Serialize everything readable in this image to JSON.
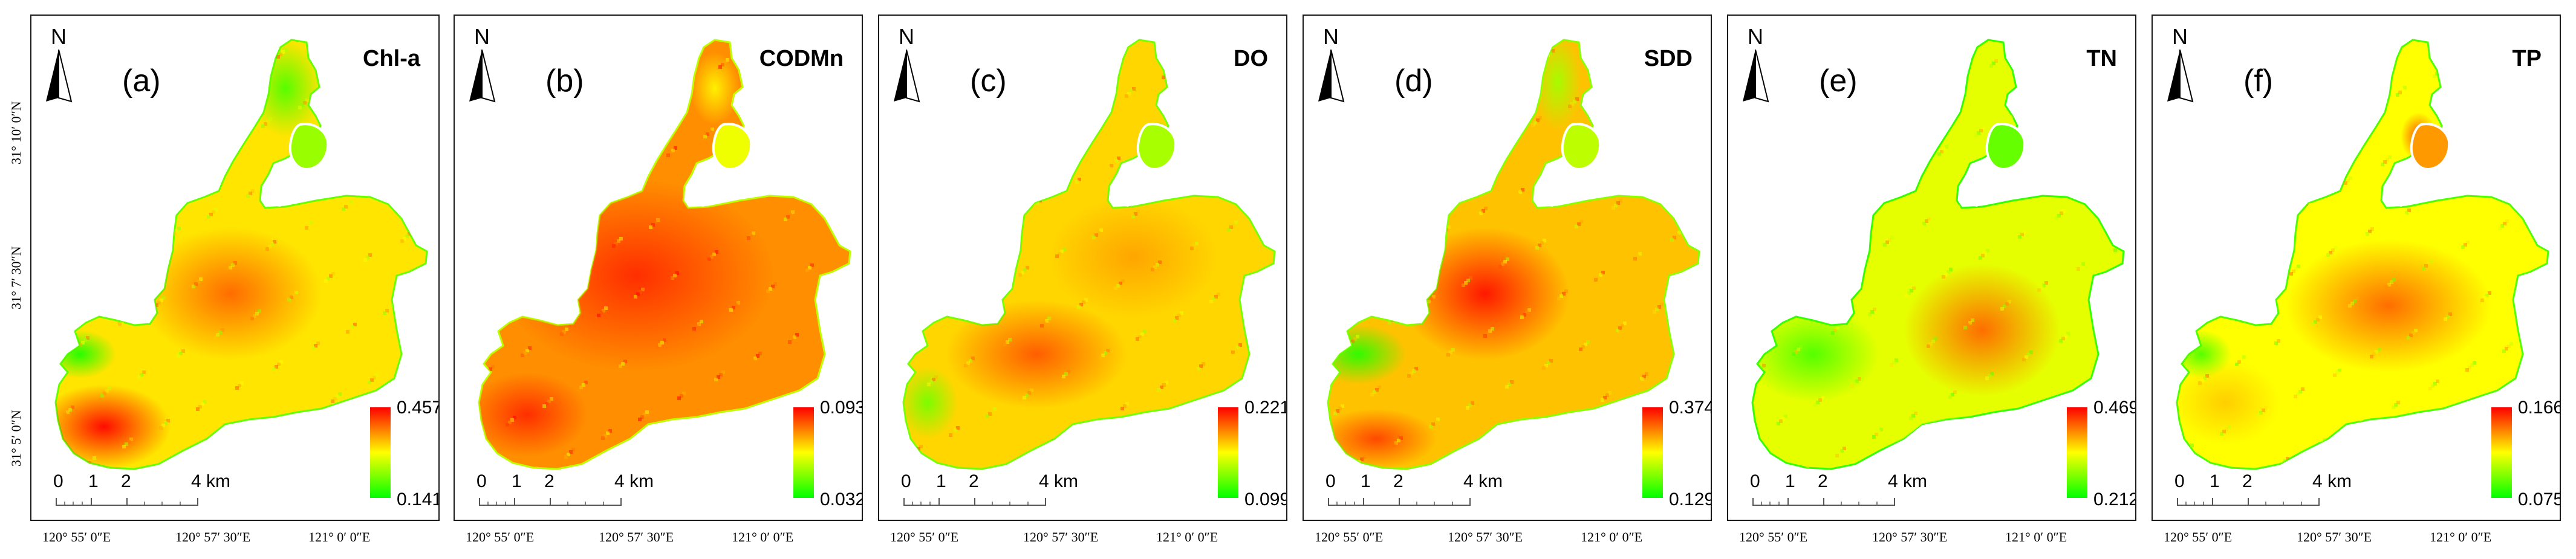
{
  "figure": {
    "latitude_labels": [
      "31° 10′ 0″N",
      "31° 7′ 30″N",
      "31° 5′ 0″N"
    ],
    "longitude_labels": [
      "120° 55′ 0″E",
      "120° 57′ 30″E",
      "121° 0′ 0″E"
    ],
    "north_letter": "N",
    "scale": {
      "ticks": [
        "0",
        "1",
        "2",
        "4 km"
      ]
    },
    "colors": {
      "low": "#00ff00",
      "mid": "#ffff00",
      "high": "#ff0000"
    }
  },
  "panels": [
    {
      "label": "(a)",
      "parameter": "Chl-a",
      "legend_max": "0.457",
      "legend_min": "0.141",
      "mean_level": 0.55
    },
    {
      "label": "(b)",
      "parameter": "CODMn",
      "legend_max": "0.093",
      "legend_min": "0.032",
      "mean_level": 0.72
    },
    {
      "label": "(c)",
      "parameter": "DO",
      "legend_max": "0.221",
      "legend_min": "0.099",
      "mean_level": 0.58
    },
    {
      "label": "(d)",
      "parameter": "SDD",
      "legend_max": "0.374",
      "legend_min": "0.129",
      "mean_level": 0.62
    },
    {
      "label": "(e)",
      "parameter": "TN",
      "legend_max": "0.469",
      "legend_min": "0.212",
      "mean_level": 0.45
    },
    {
      "label": "(f)",
      "parameter": "TP",
      "legend_max": "0.166",
      "legend_min": "0.075",
      "mean_level": 0.5
    }
  ]
}
